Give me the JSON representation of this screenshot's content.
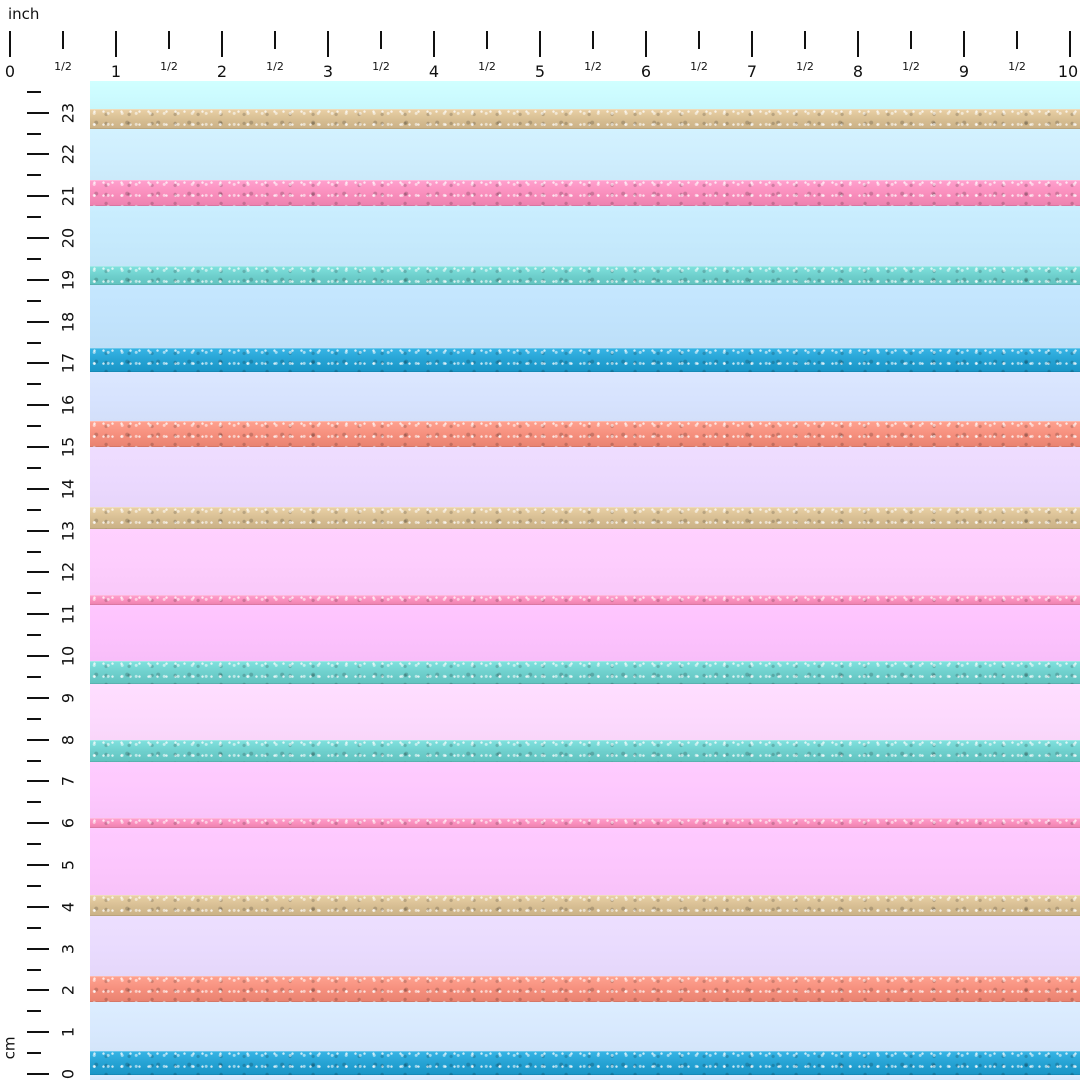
{
  "rulers": {
    "top_unit": "inch",
    "left_unit": "cm",
    "inch_labels": [
      "0",
      "1",
      "2",
      "3",
      "4",
      "5",
      "6",
      "7",
      "8",
      "9",
      "10"
    ],
    "half_label": "1/2",
    "cm_labels": [
      "0",
      "1",
      "2",
      "3",
      "4",
      "5",
      "6",
      "7",
      "8",
      "9",
      "10",
      "11",
      "12",
      "13",
      "14",
      "15",
      "16",
      "17",
      "18",
      "19",
      "20",
      "21",
      "22",
      "23"
    ]
  },
  "pattern": {
    "name": "glitter-stripes",
    "pastel_bands_top_to_bottom": [
      "#ccfbff",
      "#cfeefe",
      "#c6eafd",
      "#c1e3fc",
      "#d7e3fe",
      "#ebd9fe",
      "#fdcdfd",
      "#fcc2fd",
      "#fddafe",
      "#fdc8fe",
      "#fcc6fd",
      "#e9dbfe",
      "#d8e9fe"
    ],
    "glitter_stripes_top_to_bottom": [
      "gold",
      "pink",
      "teal",
      "blue",
      "coral",
      "gold",
      "pink",
      "teal",
      "teal",
      "pink",
      "gold",
      "coral",
      "blue"
    ],
    "glitter_colors": {
      "gold": "#d8bf94",
      "pink": "#fa8fbd",
      "teal": "#6fd0cd",
      "blue": "#26a3d4",
      "coral": "#f6907e"
    }
  }
}
